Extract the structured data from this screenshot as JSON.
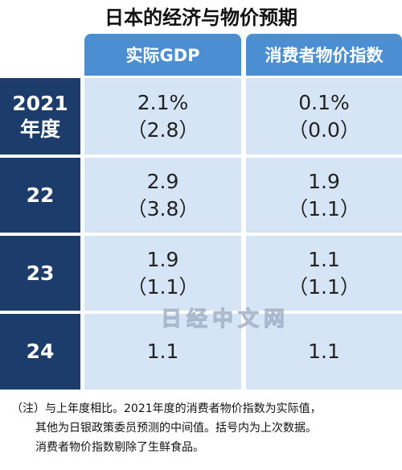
{
  "title": "日本的经济与物价预期",
  "table": {
    "header": [
      "实际GDP",
      "消费者物价指数"
    ],
    "rows": [
      {
        "label": [
          "2021",
          "年度"
        ],
        "cells": [
          [
            "2.1%",
            "（2.8）"
          ],
          [
            "0.1%",
            "（0.0）"
          ]
        ]
      },
      {
        "label": [
          "22"
        ],
        "cells": [
          [
            "2.9",
            "（3.8）"
          ],
          [
            "1.9",
            "（1.1）"
          ]
        ]
      },
      {
        "label": [
          "23"
        ],
        "cells": [
          [
            "1.9",
            "（1.1）"
          ],
          [
            "1.1",
            "（1.1）"
          ]
        ]
      },
      {
        "label": [
          "24"
        ],
        "cells": [
          [
            "1.1"
          ],
          [
            "1.1"
          ]
        ]
      }
    ]
  },
  "watermark": "日经中文网",
  "note": [
    "（注）与上年度相比。2021年度的消费者物价指数为实际值，",
    "其他为日银政策委员预测的中间值。括号内为上次数据。",
    "消费者物价指数剔除了生鲜食品。"
  ]
}
